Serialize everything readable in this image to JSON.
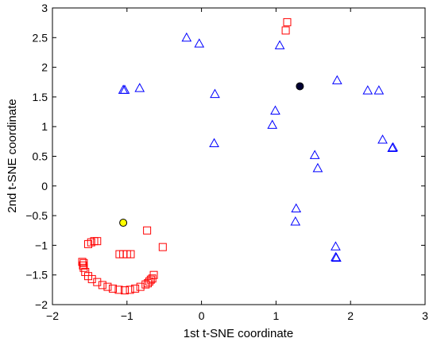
{
  "chart_data": {
    "type": "scatter",
    "xlabel": "1st t-SNE coordinate",
    "ylabel": "2nd t-SNE coordinate",
    "xlim": [
      -2,
      3
    ],
    "ylim": [
      -2,
      3
    ],
    "xticks": [
      -2,
      -1,
      0,
      1,
      2,
      3
    ],
    "yticks": [
      -2,
      -1.5,
      -1,
      -0.5,
      0,
      0.5,
      1,
      1.5,
      2,
      2.5,
      3
    ],
    "xtick_labels": [
      "−2",
      "−1",
      "0",
      "1",
      "2",
      "3"
    ],
    "ytick_labels": [
      "−2",
      "−1.5",
      "−1",
      "−0.5",
      "0",
      "0.5",
      "1",
      "1.5",
      "2",
      "2.5",
      "3"
    ],
    "grid": false,
    "series": [
      {
        "marker": "triangle",
        "color": "#0000ff",
        "points": [
          [
            -0.2,
            2.5
          ],
          [
            -0.03,
            2.4
          ],
          [
            1.05,
            2.37
          ],
          [
            -1.05,
            1.62
          ],
          [
            -1.03,
            1.62
          ],
          [
            -0.83,
            1.65
          ],
          [
            0.18,
            1.55
          ],
          [
            1.82,
            1.78
          ],
          [
            2.23,
            1.61
          ],
          [
            2.38,
            1.61
          ],
          [
            0.99,
            1.27
          ],
          [
            0.95,
            1.03
          ],
          [
            2.43,
            0.78
          ],
          [
            2.56,
            0.64
          ],
          [
            2.57,
            0.65
          ],
          [
            0.17,
            0.72
          ],
          [
            1.52,
            0.52
          ],
          [
            1.56,
            0.3
          ],
          [
            1.27,
            -0.38
          ],
          [
            1.26,
            -0.6
          ],
          [
            1.8,
            -1.02
          ],
          [
            1.8,
            -1.2
          ],
          [
            1.81,
            -1.21
          ]
        ]
      },
      {
        "marker": "square",
        "color": "#ff0000",
        "points": [
          [
            1.15,
            2.76
          ],
          [
            1.13,
            2.62
          ],
          [
            -0.73,
            -0.75
          ],
          [
            -0.52,
            -1.03
          ],
          [
            -1.1,
            -1.15
          ],
          [
            -1.05,
            -1.15
          ],
          [
            -1.0,
            -1.15
          ],
          [
            -0.95,
            -1.15
          ],
          [
            -1.52,
            -0.98
          ],
          [
            -1.48,
            -0.95
          ],
          [
            -1.44,
            -0.93
          ],
          [
            -1.4,
            -0.93
          ],
          [
            -1.6,
            -1.28
          ],
          [
            -1.58,
            -1.3
          ],
          [
            -1.59,
            -1.34
          ],
          [
            -1.58,
            -1.38
          ],
          [
            -1.56,
            -1.45
          ],
          [
            -1.52,
            -1.52
          ],
          [
            -1.47,
            -1.57
          ],
          [
            -1.4,
            -1.62
          ],
          [
            -1.33,
            -1.67
          ],
          [
            -1.26,
            -1.7
          ],
          [
            -1.19,
            -1.73
          ],
          [
            -1.11,
            -1.75
          ],
          [
            -1.03,
            -1.76
          ],
          [
            -0.96,
            -1.75
          ],
          [
            -0.89,
            -1.73
          ],
          [
            -0.82,
            -1.7
          ],
          [
            -0.75,
            -1.66
          ],
          [
            -0.7,
            -1.61
          ],
          [
            -0.66,
            -1.56
          ],
          [
            -0.64,
            -1.5
          ],
          [
            -0.68,
            -1.58
          ],
          [
            -0.72,
            -1.64
          ]
        ]
      },
      {
        "marker": "circle",
        "color": "#000033",
        "points": [
          [
            1.32,
            1.68
          ]
        ]
      },
      {
        "marker": "circle",
        "color": "#ffff00",
        "points": [
          [
            -1.05,
            -0.62
          ]
        ]
      }
    ]
  }
}
